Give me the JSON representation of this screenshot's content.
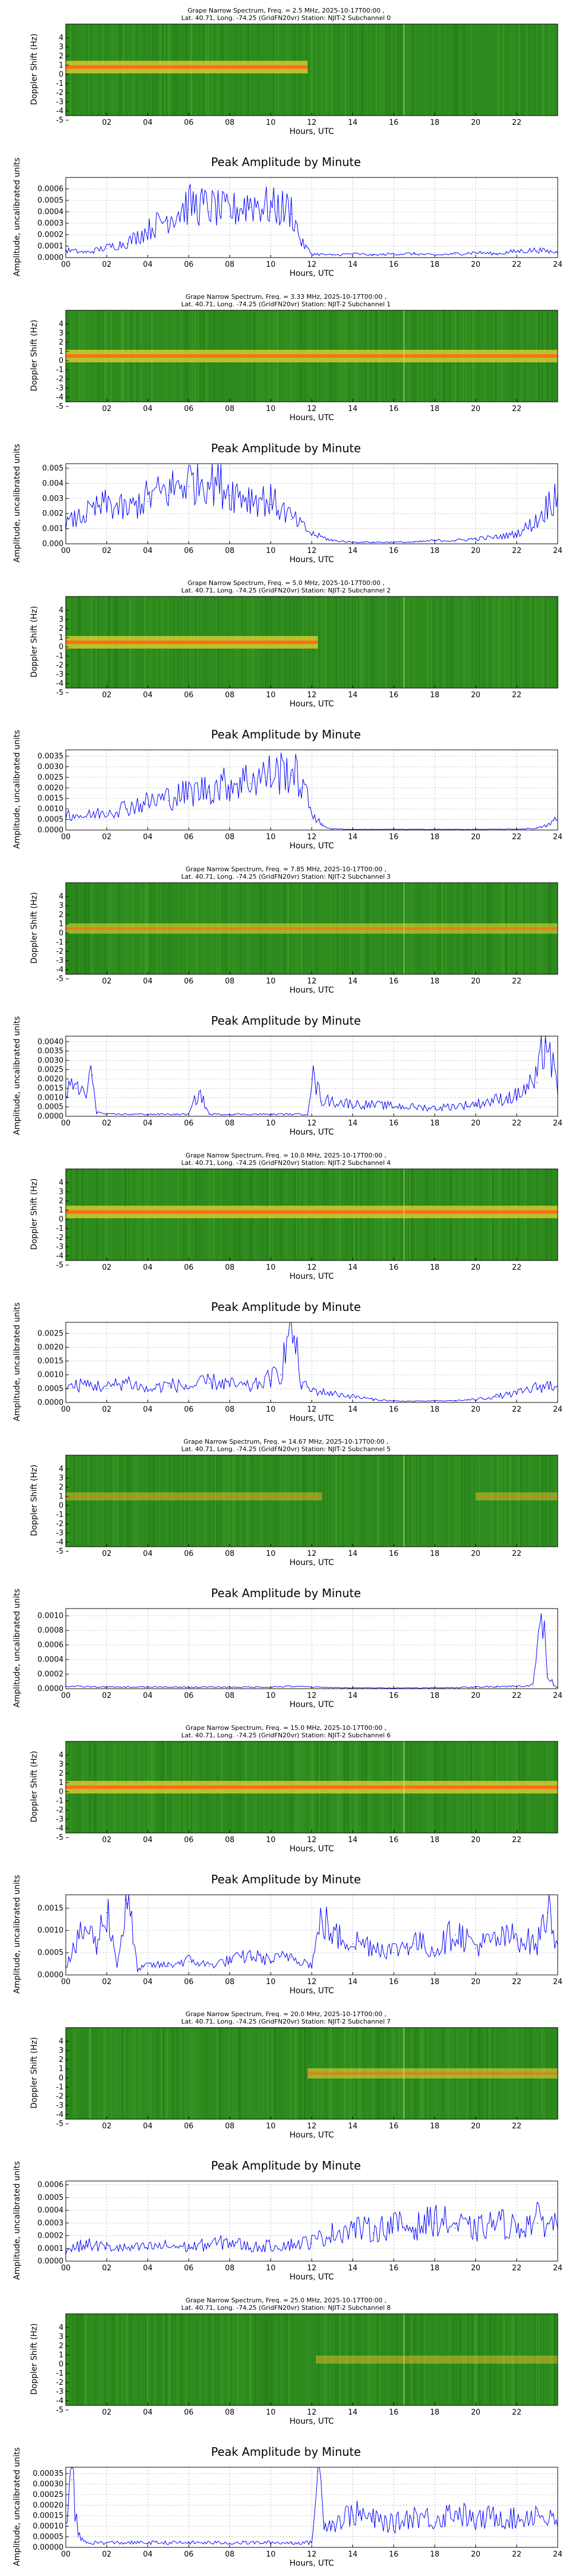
{
  "page": {
    "background": "#ffffff"
  },
  "colors": {
    "spec_bg": "#2e8b1e",
    "spec_band": "#ffdd33",
    "spec_core": "#ff6a1a",
    "line": "#0000ff",
    "grid": "#b0b0b0"
  },
  "common": {
    "spec_x_ticks": [
      "02",
      "04",
      "06",
      "08",
      "10",
      "12",
      "14",
      "16",
      "18",
      "20",
      "22"
    ],
    "spec_x_tick_hours": [
      2,
      4,
      6,
      8,
      10,
      12,
      14,
      16,
      18,
      20,
      22
    ],
    "spec_y_ticks": [
      "4",
      "3",
      "2",
      "1",
      "0",
      "-1",
      "-2",
      "-3",
      "-4",
      "-5"
    ],
    "spec_xlabel": "Hours, UTC",
    "spec_ylabel": "Doppler Shift (Hz)",
    "amp_title": "Peak Amplitude by Minute",
    "amp_xlabel": "Hours, UTC",
    "amp_ylabel": "Amplitude, uncalibrated units",
    "amp_x_ticks": [
      "00",
      "02",
      "04",
      "06",
      "08",
      "10",
      "12",
      "14",
      "16",
      "18",
      "20",
      "22",
      "24"
    ]
  },
  "chart_data": [
    {
      "type": "heatmap",
      "title": "Grape Narrow Spectrum, Freq. = 2.5 MHz, 2025-10-17T00:00 ,\nLat. 40.71, Long. -74.25 (GridFN20vr) Station: NJIT-2 Subchannel 0",
      "title_line1": "Grape Narrow Spectrum, Freq. = 2.5 MHz, 2025-10-17T00:00 ,",
      "title_line2": "Lat. 40.71, Long. -74.25 (GridFN20vr) Station: NJIT-2 Subchannel 0",
      "xlabel": "Hours, UTC",
      "ylabel": "Doppler Shift (Hz)",
      "xlim": [
        0,
        24
      ],
      "ylim": [
        -5,
        5
      ],
      "signal": {
        "start_hour": 0,
        "end_hour": 11.8,
        "doppler_hz": 0.3,
        "strength": "strong"
      }
    },
    {
      "type": "line",
      "title": "Peak Amplitude by Minute",
      "xlabel": "Hours, UTC",
      "ylabel": "Amplitude, uncalibrated units",
      "xlim": [
        0,
        24
      ],
      "ylim": [
        0,
        0.0007
      ],
      "y_ticks": [
        "0.0000",
        "0.0001",
        "0.0002",
        "0.0003",
        "0.0004",
        "0.0005",
        "0.0006"
      ],
      "y_tick_values": [
        0,
        0.0001,
        0.0002,
        0.0003,
        0.0004,
        0.0005,
        0.0006
      ],
      "x": [
        0,
        1,
        2,
        3,
        4,
        5,
        6,
        7,
        8,
        9,
        10,
        11,
        11.5,
        12,
        13,
        14,
        15,
        16,
        17,
        18,
        19,
        20,
        21,
        22,
        23,
        24
      ],
      "y": [
        6e-05,
        4e-05,
        8e-05,
        0.00012,
        0.00022,
        0.00032,
        0.00042,
        0.0004,
        0.00036,
        0.00044,
        0.0004,
        0.00038,
        0.00012,
        3e-05,
        2e-05,
        3e-05,
        2e-05,
        3e-05,
        3e-05,
        2e-05,
        3e-05,
        4e-05,
        3e-05,
        5e-05,
        6e-05,
        4e-05
      ]
    },
    {
      "type": "heatmap",
      "title": "Grape Narrow Spectrum, Freq. = 3.33 MHz, 2025-10-17T00:00 ,\nLat. 40.71, Long. -74.25 (GridFN20vr) Station: NJIT-2 Subchannel 1",
      "title_line1": "Grape Narrow Spectrum, Freq. = 3.33 MHz, 2025-10-17T00:00 ,",
      "title_line2": "Lat. 40.71, Long. -74.25 (GridFN20vr) Station: NJIT-2 Subchannel 1",
      "xlabel": "Hours, UTC",
      "ylabel": "Doppler Shift (Hz)",
      "xlim": [
        0,
        24
      ],
      "ylim": [
        -5,
        5
      ],
      "signal": {
        "start_hour": 0,
        "end_hour": 24,
        "doppler_hz": 0.0,
        "strength": "strong"
      }
    },
    {
      "type": "line",
      "title": "Peak Amplitude by Minute",
      "xlabel": "Hours, UTC",
      "ylabel": "Amplitude, uncalibrated units",
      "xlim": [
        0,
        24
      ],
      "ylim": [
        0,
        0.0053
      ],
      "y_ticks": [
        "0.000",
        "0.001",
        "0.002",
        "0.003",
        "0.004",
        "0.005"
      ],
      "y_tick_values": [
        0,
        0.001,
        0.002,
        0.003,
        0.004,
        0.005
      ],
      "x": [
        0,
        1,
        2,
        3,
        4,
        5,
        6,
        7,
        8,
        9,
        10,
        11,
        12,
        13,
        14,
        15,
        16,
        17,
        18,
        19,
        20,
        21,
        22,
        23,
        24
      ],
      "y": [
        0.0012,
        0.0018,
        0.0024,
        0.002,
        0.0028,
        0.0032,
        0.0038,
        0.004,
        0.0032,
        0.0028,
        0.0026,
        0.0016,
        0.0006,
        0.0002,
        0.0001,
        0.0001,
        0.0001,
        0.0001,
        0.0002,
        0.0002,
        0.0003,
        0.0004,
        0.0006,
        0.0014,
        0.0032
      ]
    },
    {
      "type": "heatmap",
      "title": "Grape Narrow Spectrum, Freq. = 5.0 MHz, 2025-10-17T00:00 ,\nLat. 40.71, Long. -74.25 (GridFN20vr) Station: NJIT-2 Subchannel 2",
      "title_line1": "Grape Narrow Spectrum, Freq. = 5.0 MHz, 2025-10-17T00:00 ,",
      "title_line2": "Lat. 40.71, Long. -74.25 (GridFN20vr) Station: NJIT-2 Subchannel 2",
      "xlabel": "Hours, UTC",
      "ylabel": "Doppler Shift (Hz)",
      "xlim": [
        0,
        24
      ],
      "ylim": [
        -5,
        5
      ],
      "signal": {
        "start_hour": 0,
        "end_hour": 12.3,
        "doppler_hz": 0.0,
        "strength": "strong"
      }
    },
    {
      "type": "line",
      "title": "Peak Amplitude by Minute",
      "xlabel": "Hours, UTC",
      "ylabel": "Amplitude, uncalibrated units",
      "xlim": [
        0,
        24
      ],
      "ylim": [
        0,
        0.0038
      ],
      "y_ticks": [
        "0.0000",
        "0.0005",
        "0.0010",
        "0.0015",
        "0.0020",
        "0.0025",
        "0.0030",
        "0.0035"
      ],
      "y_tick_values": [
        0,
        0.0005,
        0.001,
        0.0015,
        0.002,
        0.0025,
        0.003,
        0.0035
      ],
      "x": [
        0,
        1,
        2,
        3,
        4,
        5,
        6,
        7,
        8,
        9,
        10,
        11,
        11.5,
        12,
        12.5,
        13,
        14,
        16,
        18,
        20,
        22,
        23,
        23.5,
        24
      ],
      "y": [
        0.0007,
        0.0006,
        0.0008,
        0.001,
        0.0012,
        0.0014,
        0.0016,
        0.0018,
        0.002,
        0.0022,
        0.0024,
        0.0026,
        0.002,
        0.0008,
        0.0002,
        5e-05,
        3e-05,
        3e-05,
        3e-05,
        3e-05,
        4e-05,
        8e-05,
        0.0002,
        0.0005
      ]
    },
    {
      "type": "heatmap",
      "title": "Grape Narrow Spectrum, Freq. = 7.85 MHz, 2025-10-17T00:00 ,\nLat. 40.71, Long. -74.25 (GridFN20vr) Station: NJIT-2 Subchannel 3",
      "title_line1": "Grape Narrow Spectrum, Freq. = 7.85 MHz, 2025-10-17T00:00 ,",
      "title_line2": "Lat. 40.71, Long. -74.25 (GridFN20vr) Station: NJIT-2 Subchannel 3",
      "xlabel": "Hours, UTC",
      "ylabel": "Doppler Shift (Hz)",
      "xlim": [
        0,
        24
      ],
      "ylim": [
        -5,
        5
      ],
      "signal": {
        "start_hour": 0,
        "end_hour": 24,
        "doppler_hz": 0.0,
        "strength": "medium"
      }
    },
    {
      "type": "line",
      "title": "Peak Amplitude by Minute",
      "xlabel": "Hours, UTC",
      "ylabel": "Amplitude, uncalibrated units",
      "xlim": [
        0,
        24
      ],
      "ylim": [
        0,
        0.0043
      ],
      "y_ticks": [
        "0.0000",
        "0.0005",
        "0.0010",
        "0.0015",
        "0.0020",
        "0.0025",
        "0.0030",
        "0.0035",
        "0.0040"
      ],
      "y_tick_values": [
        0,
        0.0005,
        0.001,
        0.0015,
        0.002,
        0.0025,
        0.003,
        0.0035,
        0.004
      ],
      "x": [
        0,
        0.5,
        1,
        1.3,
        1.5,
        2,
        4,
        6,
        6.5,
        7,
        8,
        10,
        11.8,
        12,
        12.5,
        14,
        16,
        18,
        20,
        22,
        23,
        23.4,
        24
      ],
      "y": [
        0.0012,
        0.0015,
        0.001,
        0.0022,
        0.0002,
        0.0001,
        0.0001,
        0.0001,
        0.0012,
        0.0001,
        0.0001,
        0.0001,
        0.0001,
        0.002,
        0.0008,
        0.0006,
        0.0005,
        0.0004,
        0.0006,
        0.001,
        0.0018,
        0.004,
        0.0012
      ]
    },
    {
      "type": "heatmap",
      "title": "Grape Narrow Spectrum, Freq. = 10.0 MHz, 2025-10-17T00:00 ,\nLat. 40.71, Long. -74.25 (GridFN20vr) Station: NJIT-2 Subchannel 4",
      "title_line1": "Grape Narrow Spectrum, Freq. = 10.0 MHz, 2025-10-17T00:00 ,",
      "title_line2": "Lat. 40.71, Long. -74.25 (GridFN20vr) Station: NJIT-2 Subchannel 4",
      "xlabel": "Hours, UTC",
      "ylabel": "Doppler Shift (Hz)",
      "xlim": [
        0,
        24
      ],
      "ylim": [
        -5,
        5
      ],
      "signal": {
        "start_hour": 0,
        "end_hour": 24,
        "doppler_hz": 0.3,
        "strength": "strong"
      }
    },
    {
      "type": "line",
      "title": "Peak Amplitude by Minute",
      "xlabel": "Hours, UTC",
      "ylabel": "Amplitude, uncalibrated units",
      "xlim": [
        0,
        24
      ],
      "ylim": [
        0,
        0.0029
      ],
      "y_ticks": [
        "0.0000",
        "0.0005",
        "0.0010",
        "0.0015",
        "0.0020",
        "0.0025"
      ],
      "y_tick_values": [
        0,
        0.0005,
        0.001,
        0.0015,
        0.002,
        0.0025
      ],
      "x": [
        0,
        1,
        2,
        3,
        4,
        5,
        6,
        7,
        8,
        9,
        10,
        10.5,
        11,
        11.5,
        12,
        13,
        14,
        15,
        16,
        17,
        18,
        19,
        20,
        21,
        22,
        23,
        24
      ],
      "y": [
        0.0005,
        0.0006,
        0.0005,
        0.0007,
        0.0004,
        0.0006,
        0.0005,
        0.0007,
        0.0006,
        0.0005,
        0.0008,
        0.001,
        0.0028,
        0.0006,
        0.0004,
        0.0003,
        0.0002,
        0.0001,
        5e-05,
        4e-05,
        5e-05,
        6e-05,
        0.0001,
        0.0002,
        0.0003,
        0.0005,
        0.0006
      ]
    },
    {
      "type": "heatmap",
      "title": "Grape Narrow Spectrum, Freq. = 14.67 MHz, 2025-10-17T00:00 ,\nLat. 40.71, Long. -74.25 (GridFN20vr) Station: NJIT-2 Subchannel 5",
      "title_line1": "Grape Narrow Spectrum, Freq. = 14.67 MHz, 2025-10-17T00:00 ,",
      "title_line2": "Lat. 40.71, Long. -74.25 (GridFN20vr) Station: NJIT-2 Subchannel 5",
      "xlabel": "Hours, UTC",
      "ylabel": "Doppler Shift (Hz)",
      "xlim": [
        0,
        24
      ],
      "ylim": [
        -5,
        5
      ],
      "signal": {
        "start_hour": 0,
        "end_hour": 12.5,
        "doppler_hz": 0.5,
        "strength": "weak",
        "second_start_hour": 20,
        "second_end_hour": 24
      }
    },
    {
      "type": "line",
      "title": "Peak Amplitude by Minute",
      "xlabel": "Hours, UTC",
      "ylabel": "Amplitude, uncalibrated units",
      "xlim": [
        0,
        24
      ],
      "ylim": [
        0,
        0.0011
      ],
      "y_ticks": [
        "0.0000",
        "0.0002",
        "0.0004",
        "0.0006",
        "0.0008",
        "0.0010"
      ],
      "y_tick_values": [
        0,
        0.0002,
        0.0004,
        0.0006,
        0.0008,
        0.001
      ],
      "x": [
        0,
        2,
        4,
        6,
        8,
        10,
        11,
        12,
        14,
        16,
        18,
        20,
        21,
        22,
        22.8,
        23.2,
        23.5,
        23.8,
        24
      ],
      "y": [
        3e-05,
        2e-05,
        2e-05,
        2e-05,
        2e-05,
        2e-05,
        3e-05,
        2e-05,
        1e-05,
        1e-05,
        1e-05,
        2e-05,
        3e-05,
        3e-05,
        5e-05,
        0.00102,
        0.0002,
        5e-05,
        2e-05
      ]
    },
    {
      "type": "heatmap",
      "title": "Grape Narrow Spectrum, Freq. = 15.0 MHz, 2025-10-17T00:00 ,\nLat. 40.71, Long. -74.25 (GridFN20vr) Station: NJIT-2 Subchannel 6",
      "title_line1": "Grape Narrow Spectrum, Freq. = 15.0 MHz, 2025-10-17T00:00 ,",
      "title_line2": "Lat. 40.71, Long. -74.25 (GridFN20vr) Station: NJIT-2 Subchannel 6",
      "xlabel": "Hours, UTC",
      "ylabel": "Doppler Shift (Hz)",
      "xlim": [
        0,
        24
      ],
      "ylim": [
        -5,
        5
      ],
      "signal": {
        "start_hour": 0,
        "end_hour": 24,
        "doppler_hz": 0.0,
        "strength": "strong"
      }
    },
    {
      "type": "line",
      "title": "Peak Amplitude by Minute",
      "xlabel": "Hours, UTC",
      "ylabel": "Amplitude, uncalibrated units",
      "xlim": [
        0,
        24
      ],
      "ylim": [
        0,
        0.0018
      ],
      "y_ticks": [
        "0.0000",
        "0.0005",
        "0.0010",
        "0.0015"
      ],
      "y_tick_values": [
        0,
        0.0005,
        0.001,
        0.0015
      ],
      "x": [
        0,
        1,
        1.5,
        2,
        2.5,
        3,
        3.5,
        4,
        5,
        6,
        7,
        8,
        9,
        10,
        11,
        12,
        12.5,
        13,
        14,
        15,
        16,
        17,
        18,
        19,
        20,
        21,
        22,
        23,
        23.5,
        24
      ],
      "y": [
        0.0002,
        0.001,
        0.0006,
        0.0014,
        0.0002,
        0.0016,
        0.0001,
        0.0002,
        0.0002,
        0.0003,
        0.0002,
        0.0003,
        0.0004,
        0.0003,
        0.0004,
        0.0002,
        0.0012,
        0.0008,
        0.0007,
        0.0006,
        0.0005,
        0.0007,
        0.0005,
        0.0009,
        0.0006,
        0.0007,
        0.0008,
        0.0006,
        0.0014,
        0.0007
      ]
    },
    {
      "type": "heatmap",
      "title": "Grape Narrow Spectrum, Freq. = 20.0 MHz, 2025-10-17T00:00 ,\nLat. 40.71, Long. -74.25 (GridFN20vr) Station: NJIT-2 Subchannel 7",
      "title_line1": "Grape Narrow Spectrum, Freq. = 20.0 MHz, 2025-10-17T00:00 ,",
      "title_line2": "Lat. 40.71, Long. -74.25 (GridFN20vr) Station: NJIT-2 Subchannel 7",
      "xlabel": "Hours, UTC",
      "ylabel": "Doppler Shift (Hz)",
      "xlim": [
        0,
        24
      ],
      "ylim": [
        -5,
        5
      ],
      "signal": {
        "start_hour": 11.8,
        "end_hour": 24,
        "doppler_hz": 0.0,
        "strength": "medium"
      }
    },
    {
      "type": "line",
      "title": "Peak Amplitude by Minute",
      "xlabel": "Hours, UTC",
      "ylabel": "Amplitude, uncalibrated units",
      "xlim": [
        0,
        24
      ],
      "ylim": [
        0,
        0.00063
      ],
      "y_ticks": [
        "0.0000",
        "0.0001",
        "0.0002",
        "0.0003",
        "0.0004",
        "0.0005",
        "0.0006"
      ],
      "y_tick_values": [
        0,
        0.0001,
        0.0002,
        0.0003,
        0.0004,
        0.0005,
        0.0006
      ],
      "x": [
        0,
        1,
        2,
        3,
        4,
        5,
        6,
        7,
        8,
        9,
        10,
        11,
        12,
        13,
        14,
        15,
        16,
        17,
        18,
        19,
        20,
        21,
        22,
        23,
        24
      ],
      "y": [
        8e-05,
        0.00012,
        0.0001,
        9e-05,
        0.0001,
        0.00011,
        0.0001,
        0.00012,
        0.00014,
        0.0001,
        0.00011,
        0.00012,
        0.00014,
        0.0002,
        0.00024,
        0.00022,
        0.00026,
        0.00024,
        0.0003,
        0.00026,
        0.00022,
        0.00028,
        0.00024,
        0.0003,
        0.00026
      ]
    },
    {
      "type": "heatmap",
      "title": "Grape Narrow Spectrum, Freq. = 25.0 MHz, 2025-10-17T00:00 ,\nLat. 40.71, Long. -74.25 (GridFN20vr) Station: NJIT-2 Subchannel 8",
      "title_line1": "Grape Narrow Spectrum, Freq. = 25.0 MHz, 2025-10-17T00:00 ,",
      "title_line2": "Lat. 40.71, Long. -74.25 (GridFN20vr) Station: NJIT-2 Subchannel 8",
      "xlabel": "Hours, UTC",
      "ylabel": "Doppler Shift (Hz)",
      "xlim": [
        0,
        24
      ],
      "ylim": [
        -5,
        5
      ],
      "signal": {
        "start_hour": 12.2,
        "end_hour": 24,
        "doppler_hz": 0.0,
        "strength": "weak"
      }
    },
    {
      "type": "line",
      "title": "Peak Amplitude by Minute",
      "xlabel": "Hours, UTC",
      "ylabel": "Amplitude, uncalibrated units",
      "xlim": [
        0,
        24
      ],
      "ylim": [
        0,
        0.00038
      ],
      "y_ticks": [
        "0.00000",
        "0.00005",
        "0.00010",
        "0.00015",
        "0.00020",
        "0.00025",
        "0.00030",
        "0.00035"
      ],
      "y_tick_values": [
        0,
        5e-05,
        0.0001,
        0.00015,
        0.0002,
        0.00025,
        0.0003,
        0.00035
      ],
      "x": [
        0,
        0.3,
        0.6,
        1,
        2,
        4,
        6,
        8,
        10,
        11,
        12,
        12.3,
        12.6,
        13,
        14,
        15,
        16,
        17,
        18,
        19,
        20,
        21,
        22,
        23,
        24
      ],
      "y": [
        0.0001,
        0.00032,
        5e-05,
        2e-05,
        2e-05,
        2e-05,
        2e-05,
        2e-05,
        2e-05,
        2e-05,
        2e-05,
        0.00036,
        0.00012,
        0.0001,
        0.00015,
        0.00012,
        0.0001,
        0.00014,
        0.00012,
        0.00016,
        0.00011,
        0.00014,
        0.00012,
        0.00015,
        0.0001
      ]
    }
  ]
}
